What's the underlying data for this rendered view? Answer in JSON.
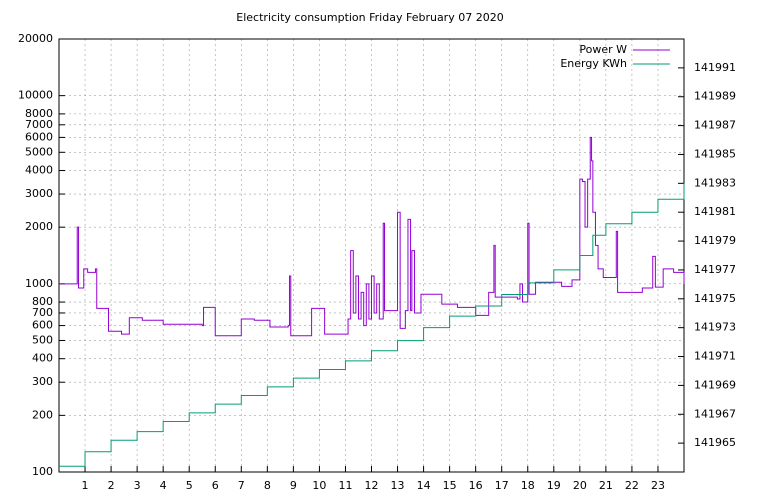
{
  "chart_data": {
    "type": "line",
    "title": "Electricity consumption Friday February 07 2020",
    "steps": true,
    "grid": true,
    "log_y": true,
    "legend": "top-right",
    "xlim": [
      0,
      24
    ],
    "xticks": [
      1,
      2,
      3,
      4,
      5,
      6,
      7,
      8,
      9,
      10,
      11,
      12,
      13,
      14,
      15,
      16,
      17,
      18,
      19,
      20,
      21,
      22,
      23
    ],
    "ylim": [
      100,
      20000
    ],
    "yticks": [
      100,
      200,
      300,
      400,
      500,
      600,
      700,
      800,
      1000,
      2000,
      3000,
      4000,
      5000,
      6000,
      7000,
      8000,
      10000,
      20000
    ],
    "y2lim": [
      141963,
      141993
    ],
    "y2ticks": [
      141965,
      141967,
      141969,
      141971,
      141973,
      141975,
      141977,
      141979,
      141981,
      141983,
      141985,
      141987,
      141989,
      141991
    ],
    "series": [
      {
        "name": "Power W",
        "color": "#9400d3",
        "x": [
          0,
          0.65,
          0.7,
          0.75,
          0.95,
          1.1,
          1.4,
          1.45,
          1.9,
          2.4,
          2.7,
          3.2,
          4.0,
          5.5,
          5.55,
          6.0,
          7.0,
          7.5,
          8.1,
          8.8,
          8.85,
          8.9,
          9.7,
          10.2,
          11.0,
          11.1,
          11.2,
          11.3,
          11.4,
          11.5,
          11.6,
          11.7,
          11.8,
          11.9,
          12.0,
          12.1,
          12.2,
          12.3,
          12.45,
          12.5,
          13.0,
          13.1,
          13.3,
          13.4,
          13.5,
          13.55,
          13.65,
          13.9,
          14.7,
          15.3,
          16.0,
          16.5,
          16.7,
          16.75,
          17.6,
          17.7,
          17.8,
          18.0,
          18.05,
          18.3,
          19.3,
          19.7,
          20.0,
          20.1,
          20.2,
          20.3,
          20.4,
          20.45,
          20.5,
          20.6,
          20.7,
          20.9,
          21.4,
          21.45,
          22.4,
          22.8,
          22.9,
          23.2,
          23.6,
          24
        ],
        "values": [
          1000,
          1000,
          2000,
          950,
          1200,
          1150,
          1200,
          740,
          560,
          540,
          660,
          640,
          610,
          600,
          750,
          530,
          650,
          640,
          590,
          600,
          1100,
          530,
          740,
          540,
          540,
          650,
          1500,
          700,
          1100,
          650,
          900,
          600,
          1000,
          650,
          1100,
          700,
          1000,
          650,
          2100,
          720,
          2400,
          580,
          720,
          2200,
          720,
          1500,
          700,
          880,
          780,
          750,
          680,
          900,
          1600,
          850,
          830,
          1000,
          800,
          2100,
          880,
          1020,
          970,
          1050,
          3600,
          3500,
          2000,
          3600,
          6000,
          4500,
          2400,
          1600,
          1200,
          1080,
          1900,
          900,
          950,
          1400,
          960,
          1200,
          1150,
          1000
        ]
      },
      {
        "name": "Energy KWh",
        "color": "#009e73",
        "axis": "y2",
        "x": [
          0,
          1,
          2,
          3,
          4,
          5,
          6,
          7,
          8,
          9,
          10,
          11,
          12,
          13,
          14,
          15,
          16,
          17,
          18,
          19,
          20,
          20.5,
          21,
          22,
          23,
          24
        ],
        "values": [
          141963.4,
          141964.4,
          141965.2,
          141965.8,
          141966.5,
          141967.1,
          141967.7,
          141968.3,
          141968.9,
          141969.5,
          141970.1,
          141970.7,
          141971.4,
          141972.1,
          141973.0,
          141973.8,
          141974.5,
          141975.3,
          141976.1,
          141977.0,
          141978.0,
          141979.4,
          141980.2,
          141981.0,
          141981.9,
          141983.0
        ]
      }
    ]
  }
}
